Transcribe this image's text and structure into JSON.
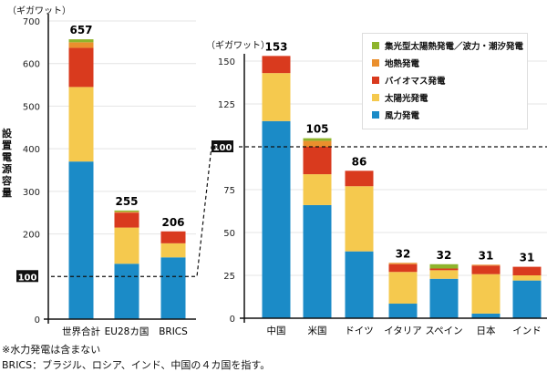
{
  "unit_label": "（ギガワット）",
  "notes": [
    "※水力発電は含まない",
    "BRICS：ブラジル、ロシア、インド、中国の４カ国を指す。"
  ],
  "colors": {
    "wind": "#1b8bc7",
    "solar": "#f5c94e",
    "biomass": "#d93a1e",
    "geothermal": "#ea8f2d",
    "csp_wave": "#8eb42c"
  },
  "legend": [
    {
      "key": "csp_wave",
      "label": "集光型太陽熱発電／波力・潮汐発電"
    },
    {
      "key": "geothermal",
      "label": "地熱発電"
    },
    {
      "key": "biomass",
      "label": "バイオマス発電"
    },
    {
      "key": "solar",
      "label": "太陽光発電"
    },
    {
      "key": "wind",
      "label": "風力発電"
    }
  ],
  "chart_data": [
    {
      "type": "bar",
      "stacked": true,
      "ylabel": "設置電源容量",
      "unit": "（ギガワット）",
      "ylim": [
        0,
        700
      ],
      "yticks": [
        0,
        100,
        200,
        300,
        400,
        500,
        600,
        700
      ],
      "reference_line": {
        "value": 100,
        "label": "100"
      },
      "grid": true,
      "categories": [
        "世界合計",
        "EU28カ国",
        "BRICS"
      ],
      "totals": [
        "657",
        "255",
        "206"
      ],
      "series": [
        {
          "name": "風力発電",
          "key": "wind",
          "values": [
            370,
            130,
            145
          ]
        },
        {
          "name": "太陽光発電",
          "key": "solar",
          "values": [
            175,
            85,
            33
          ]
        },
        {
          "name": "バイオマス発電",
          "key": "biomass",
          "values": [
            92,
            35,
            28
          ]
        },
        {
          "name": "地熱発電",
          "key": "geothermal",
          "values": [
            13,
            2,
            0
          ]
        },
        {
          "name": "集光型太陽熱発電／波力・潮汐発電",
          "key": "csp_wave",
          "values": [
            7,
            3,
            0
          ]
        }
      ]
    },
    {
      "type": "bar",
      "stacked": true,
      "unit": "（ギガワット）",
      "ylim": [
        0,
        150
      ],
      "yticks": [
        0,
        25,
        50,
        75,
        100,
        125,
        150
      ],
      "reference_line": {
        "value": 100,
        "label": "100"
      },
      "grid": true,
      "legend_position": "top-right",
      "categories": [
        "中国",
        "米国",
        "ドイツ",
        "イタリア",
        "スペイン",
        "日本",
        "インド"
      ],
      "totals": [
        "153",
        "105",
        "86",
        "32",
        "32",
        "31",
        "31"
      ],
      "series": [
        {
          "name": "風力発電",
          "key": "wind",
          "values": [
            115,
            66,
            39,
            8.5,
            23,
            2.7,
            22
          ]
        },
        {
          "name": "太陽光発電",
          "key": "solar",
          "values": [
            28,
            18,
            38,
            18.5,
            5,
            23,
            3
          ]
        },
        {
          "name": "バイオマス発電",
          "key": "biomass",
          "values": [
            10,
            16,
            9,
            4.5,
            1,
            5,
            5
          ]
        },
        {
          "name": "地熱発電",
          "key": "geothermal",
          "values": [
            0,
            3.5,
            0,
            0.8,
            0,
            0.5,
            0
          ]
        },
        {
          "name": "集光型太陽熱発電／波力・潮汐発電",
          "key": "csp_wave",
          "values": [
            0,
            1.5,
            0,
            0,
            2.5,
            0,
            0
          ]
        }
      ]
    }
  ]
}
